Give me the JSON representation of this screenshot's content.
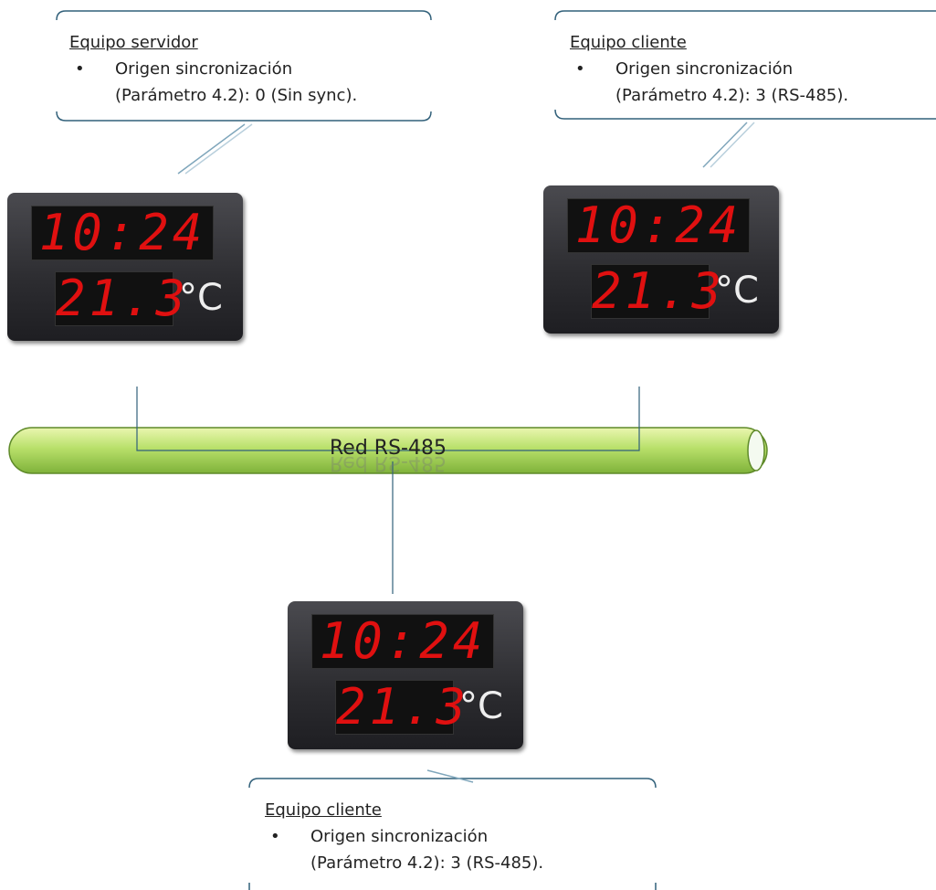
{
  "callouts": [
    {
      "title": "Equipo servidor",
      "lines": [
        "Origen sincronización",
        "(Parámetro 4.2): 0 (Sin sync)."
      ]
    },
    {
      "title": "Equipo cliente",
      "lines": [
        "Origen sincronización",
        "(Parámetro 4.2): 3 (RS-485)."
      ]
    },
    {
      "title": "Equipo cliente",
      "lines": [
        "Origen sincronización",
        "(Parámetro 4.2): 3 (RS-485)."
      ]
    }
  ],
  "display": {
    "time": "10:24",
    "temperature": "21.3",
    "unit": "°C"
  },
  "network": {
    "label": "Red RS-485"
  }
}
